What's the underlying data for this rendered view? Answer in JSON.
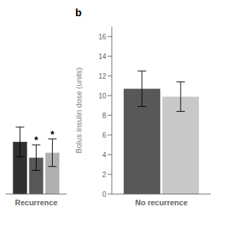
{
  "chart_data": [
    {
      "type": "bar",
      "categories": [
        "Recurrence"
      ],
      "series": [
        {
          "color": "#303030",
          "values": [
            5.3
          ],
          "errors": [
            1.5
          ]
        },
        {
          "color": "#585858",
          "values": [
            3.7
          ],
          "errors": [
            1.3
          ],
          "annotation": "*"
        },
        {
          "color": "#b0b0b0",
          "values": [
            4.2
          ],
          "errors": [
            1.4
          ],
          "annotation": "*"
        }
      ],
      "ylim": [
        0,
        17
      ],
      "grid": false,
      "tick_labels": "x"
    },
    {
      "type": "bar",
      "title": "b",
      "ylabel": "Bolus insulin dose (units)",
      "categories": [
        "No recurrence"
      ],
      "series": [
        {
          "color": "#585858",
          "values": [
            10.7
          ],
          "errors": [
            1.8
          ]
        },
        {
          "color": "#c8c8c8",
          "values": [
            9.9
          ],
          "errors": [
            1.5
          ]
        }
      ],
      "ylim": [
        0,
        17
      ],
      "yticks": [
        0,
        2,
        4,
        6,
        8,
        10,
        12,
        14,
        16
      ],
      "grid": false
    }
  ]
}
